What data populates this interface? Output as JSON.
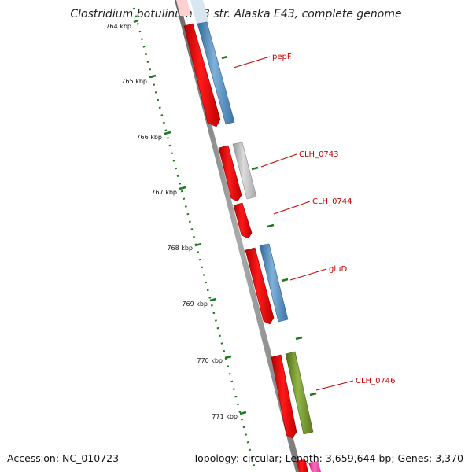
{
  "title": "Clostridium botulinum E3 str. Alaska E43, complete genome",
  "footer": {
    "accession": "Accession: NC_010723",
    "summary": "Topology: circular; Length: 3,659,644 bp; Genes: 3,370"
  },
  "colors": {
    "backbone": "#8a8a8a",
    "ruler": "#1e7a1e",
    "forward_red": "#ff0000",
    "blue": "#4f86b8",
    "gray": "#b8b8b8",
    "olive": "#6f8f2a",
    "magenta": "#e040a0",
    "label_red": "#c80000"
  },
  "ticks": [
    "764 kbp",
    "765 kbp",
    "766 kbp",
    "767 kbp",
    "768 kbp",
    "769 kbp",
    "770 kbp",
    "771 kbp"
  ],
  "genes": [
    {
      "label": "pepF"
    },
    {
      "label": "CLH_0743"
    },
    {
      "label": "CLH_0744"
    },
    {
      "label": "gluD"
    },
    {
      "label": "CLH_0746"
    }
  ]
}
